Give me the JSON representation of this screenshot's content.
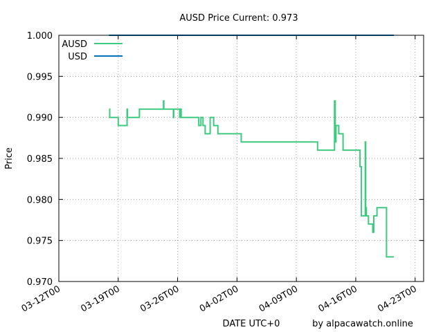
{
  "chart_data": {
    "type": "line",
    "title": "AUSD Price Current: 0.973",
    "xlabel": "DATE UTC+0",
    "ylabel": "Price",
    "credit": "by alpacawatch.online",
    "ylim": [
      0.97,
      1.0
    ],
    "xlim": [
      "2024-03-12",
      "2024-04-24"
    ],
    "grid": true,
    "legend_position": "top-left",
    "y_ticks": [
      "0.970",
      "0.975",
      "0.980",
      "0.985",
      "0.990",
      "0.995",
      "1.000"
    ],
    "x_tick_labels": [
      "03-12T00",
      "03-19T00",
      "03-26T00",
      "04-02T00",
      "04-09T00",
      "04-16T00",
      "04-23T00"
    ],
    "series": [
      {
        "name": "AUSD",
        "color": "#3dc97f",
        "step": true,
        "x": [
          "2024-03-17T22:00",
          "2024-03-18T00:00",
          "2024-03-19T00:00",
          "2024-03-20T00:00",
          "2024-03-20T01:00",
          "2024-03-20T02:00",
          "2024-03-20T03:00",
          "2024-03-21T12:00",
          "2024-03-24T08:00",
          "2024-03-24T09:00",
          "2024-03-24T12:00",
          "2024-03-25T12:00",
          "2024-03-25T13:00",
          "2024-03-26T00:00",
          "2024-03-26T06:00",
          "2024-03-26T08:00",
          "2024-03-26T10:00",
          "2024-03-28T12:00",
          "2024-03-28T18:00",
          "2024-03-29T00:00",
          "2024-03-29T06:00",
          "2024-03-29T18:00",
          "2024-03-29T20:00",
          "2024-03-30T06:00",
          "2024-03-30T12:00",
          "2024-03-30T18:00",
          "2024-03-31T00:00",
          "2024-03-31T06:00",
          "2024-04-02T12:00",
          "2024-04-05T00:00",
          "2024-04-11T12:00",
          "2024-04-13T12:00",
          "2024-04-13T14:00",
          "2024-04-13T16:00",
          "2024-04-14T00:00",
          "2024-04-14T12:00",
          "2024-04-16T12:00",
          "2024-04-16T16:00",
          "2024-04-17T03:00",
          "2024-04-17T04:00",
          "2024-04-17T06:00",
          "2024-04-17T12:00",
          "2024-04-18T00:00",
          "2024-04-18T03:00",
          "2024-04-18T12:00",
          "2024-04-19T15:00",
          "2024-04-20T12:00"
        ],
        "values": [
          0.991,
          0.99,
          0.989,
          0.989,
          0.991,
          0.99,
          0.99,
          0.991,
          0.992,
          0.991,
          0.991,
          0.99,
          0.991,
          0.991,
          0.99,
          0.991,
          0.99,
          0.989,
          0.99,
          0.989,
          0.988,
          0.988,
          0.99,
          0.989,
          0.989,
          0.988,
          0.988,
          0.988,
          0.987,
          0.987,
          0.986,
          0.992,
          0.987,
          0.989,
          0.988,
          0.986,
          0.984,
          0.978,
          0.987,
          0.979,
          0.978,
          0.977,
          0.976,
          0.978,
          0.979,
          0.973,
          0.973
        ]
      },
      {
        "name": "USD",
        "color": "#0072bd",
        "x": [
          "2024-03-17T22:00",
          "2024-04-20T12:00"
        ],
        "values": [
          1.0,
          1.0
        ]
      }
    ]
  }
}
